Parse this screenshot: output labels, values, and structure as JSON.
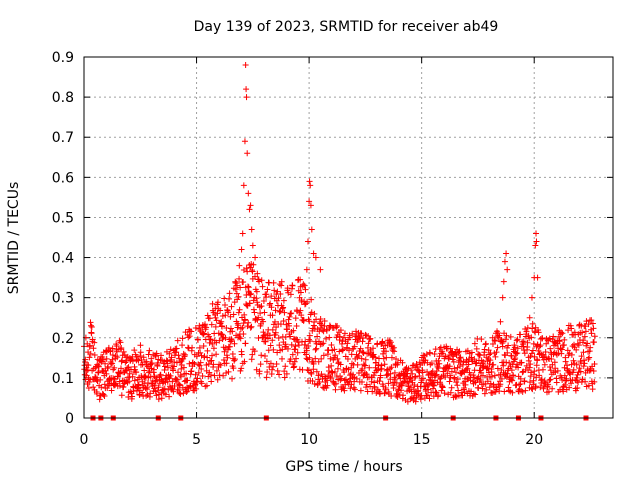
{
  "chart_data": {
    "type": "scatter",
    "title": "Day 139 of 2023, SRMTID for receiver ab49",
    "xlabel": "GPS time / hours",
    "ylabel": "SRMTID / TECUs",
    "xlim": [
      0,
      23.5
    ],
    "ylim": [
      0,
      0.9
    ],
    "xticks": [
      0,
      5,
      10,
      15,
      20
    ],
    "xtick_labels": [
      "0",
      "5",
      "10",
      "15",
      "20"
    ],
    "yticks": [
      0,
      0.1,
      0.2,
      0.3,
      0.4,
      0.5,
      0.6,
      0.7,
      0.8,
      0.9
    ],
    "ytick_labels": [
      "0",
      "0.1",
      "0.2",
      "0.3",
      "0.4",
      "0.5",
      "0.6",
      "0.7",
      "0.8",
      "0.9"
    ],
    "grid": true,
    "marker": "+",
    "color": "#ff0000",
    "baseline_profile": [
      [
        0.0,
        0.12
      ],
      [
        0.3,
        0.16
      ],
      [
        0.6,
        0.1
      ],
      [
        1.0,
        0.11
      ],
      [
        1.5,
        0.13
      ],
      [
        2.0,
        0.1
      ],
      [
        2.5,
        0.12
      ],
      [
        3.0,
        0.11
      ],
      [
        3.5,
        0.1
      ],
      [
        4.0,
        0.12
      ],
      [
        4.5,
        0.14
      ],
      [
        5.0,
        0.15
      ],
      [
        5.5,
        0.18
      ],
      [
        6.0,
        0.19
      ],
      [
        6.5,
        0.21
      ],
      [
        7.0,
        0.24
      ],
      [
        7.5,
        0.25
      ],
      [
        8.0,
        0.22
      ],
      [
        8.5,
        0.22
      ],
      [
        9.0,
        0.22
      ],
      [
        9.5,
        0.23
      ],
      [
        10.0,
        0.2
      ],
      [
        10.5,
        0.16
      ],
      [
        11.0,
        0.15
      ],
      [
        11.5,
        0.15
      ],
      [
        12.0,
        0.14
      ],
      [
        12.5,
        0.14
      ],
      [
        13.0,
        0.13
      ],
      [
        13.5,
        0.13
      ],
      [
        14.0,
        0.1
      ],
      [
        14.5,
        0.08
      ],
      [
        15.0,
        0.1
      ],
      [
        15.5,
        0.11
      ],
      [
        16.0,
        0.12
      ],
      [
        16.5,
        0.11
      ],
      [
        17.0,
        0.11
      ],
      [
        17.5,
        0.13
      ],
      [
        18.0,
        0.12
      ],
      [
        18.5,
        0.15
      ],
      [
        19.0,
        0.13
      ],
      [
        19.5,
        0.14
      ],
      [
        20.0,
        0.16
      ],
      [
        20.5,
        0.13
      ],
      [
        21.0,
        0.14
      ],
      [
        21.5,
        0.15
      ],
      [
        22.0,
        0.15
      ],
      [
        22.5,
        0.16
      ],
      [
        22.7,
        0.16
      ]
    ],
    "peak_points": [
      [
        7.0,
        0.42
      ],
      [
        7.05,
        0.46
      ],
      [
        7.1,
        0.58
      ],
      [
        7.15,
        0.69
      ],
      [
        7.18,
        0.88
      ],
      [
        7.2,
        0.82
      ],
      [
        7.22,
        0.8
      ],
      [
        7.25,
        0.66
      ],
      [
        7.3,
        0.56
      ],
      [
        7.35,
        0.52
      ],
      [
        7.4,
        0.53
      ],
      [
        7.45,
        0.47
      ],
      [
        7.5,
        0.43
      ],
      [
        7.6,
        0.4
      ],
      [
        7.7,
        0.36
      ],
      [
        6.9,
        0.38
      ],
      [
        6.8,
        0.33
      ],
      [
        9.8,
        0.33
      ],
      [
        9.9,
        0.37
      ],
      [
        9.95,
        0.44
      ],
      [
        10.0,
        0.54
      ],
      [
        10.02,
        0.59
      ],
      [
        10.05,
        0.58
      ],
      [
        10.08,
        0.53
      ],
      [
        10.12,
        0.47
      ],
      [
        10.2,
        0.41
      ],
      [
        10.3,
        0.4
      ],
      [
        10.5,
        0.37
      ],
      [
        18.5,
        0.24
      ],
      [
        18.6,
        0.3
      ],
      [
        18.65,
        0.34
      ],
      [
        18.7,
        0.39
      ],
      [
        18.75,
        0.41
      ],
      [
        18.8,
        0.37
      ],
      [
        19.8,
        0.25
      ],
      [
        19.9,
        0.3
      ],
      [
        20.0,
        0.35
      ],
      [
        20.05,
        0.43
      ],
      [
        20.08,
        0.46
      ],
      [
        20.1,
        0.44
      ],
      [
        20.15,
        0.35
      ]
    ],
    "gap_markers_x": [
      0.4,
      0.75,
      1.3,
      3.3,
      4.3,
      8.1,
      13.4,
      16.4,
      18.3,
      19.3,
      20.3,
      22.3
    ]
  }
}
